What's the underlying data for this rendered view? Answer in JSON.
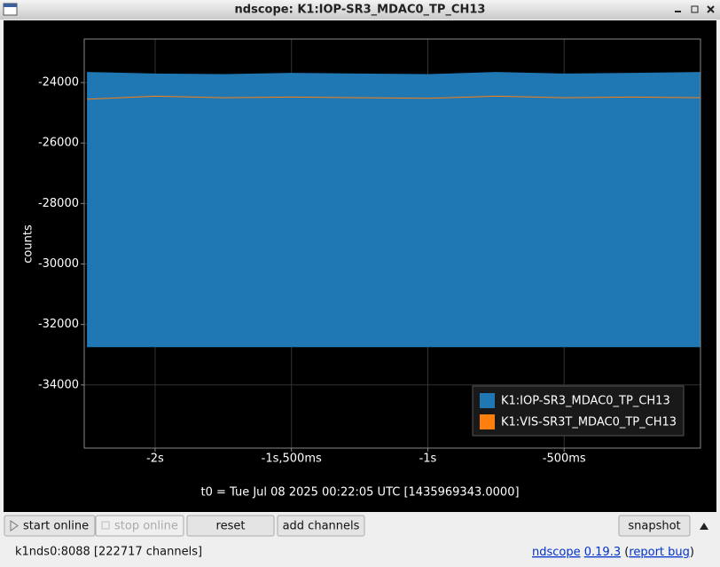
{
  "window_title": "ndscope: K1:IOP-SR3_MDAC0_TP_CH13",
  "chart_data": {
    "type": "band-line",
    "y_label": "counts",
    "x": [
      -2.25,
      -2,
      -1.75,
      -1.5,
      -1.25,
      -1,
      -0.75,
      -0.5,
      -0.25,
      0
    ],
    "series": [
      {
        "name": "K1:IOP-SR3_MDAC0_TP_CH13",
        "color": "#1f77b4",
        "max": [
          -23650,
          -23700,
          -23720,
          -23680,
          -23700,
          -23720,
          -23650,
          -23700,
          -23680,
          -23650
        ],
        "min": [
          -32750,
          -32750,
          -32750,
          -32750,
          -32750,
          -32750,
          -32750,
          -32750,
          -32750,
          -32750
        ]
      },
      {
        "name": "K1:VIS-SR3T_MDAC0_TP_CH13",
        "color": "#ff7f0e",
        "values": [
          -24550,
          -24450,
          -24500,
          -24480,
          -24500,
          -24520,
          -24450,
          -24500,
          -24480,
          -24500
        ]
      }
    ],
    "xlim": [
      -2.26,
      0
    ],
    "xticks": [
      {
        "value": -2,
        "label": "-2s"
      },
      {
        "value": -1.5,
        "label": "-1s,500ms"
      },
      {
        "value": -1,
        "label": "-1s"
      },
      {
        "value": -0.5,
        "label": "-500ms"
      }
    ],
    "ylim": [
      -36090,
      -22560
    ],
    "yticks": [
      -34000,
      -32000,
      -30000,
      -28000,
      -26000,
      -24000
    ],
    "grid": true,
    "legend": "lower-right",
    "t0": "t0 = Tue Jul 08 2025 00:22:05 UTC [1435969343.0000]"
  },
  "buttons": [
    "start online",
    "stop online",
    "reset",
    "add channels",
    "snapshot"
  ],
  "status": {
    "server": "k1nds0:8088 [222717 channels]",
    "app_link": "ndscope",
    "version_link": "0.19.3",
    "bug_open": "(",
    "bug_link": "report bug",
    "bug_close": ")"
  }
}
